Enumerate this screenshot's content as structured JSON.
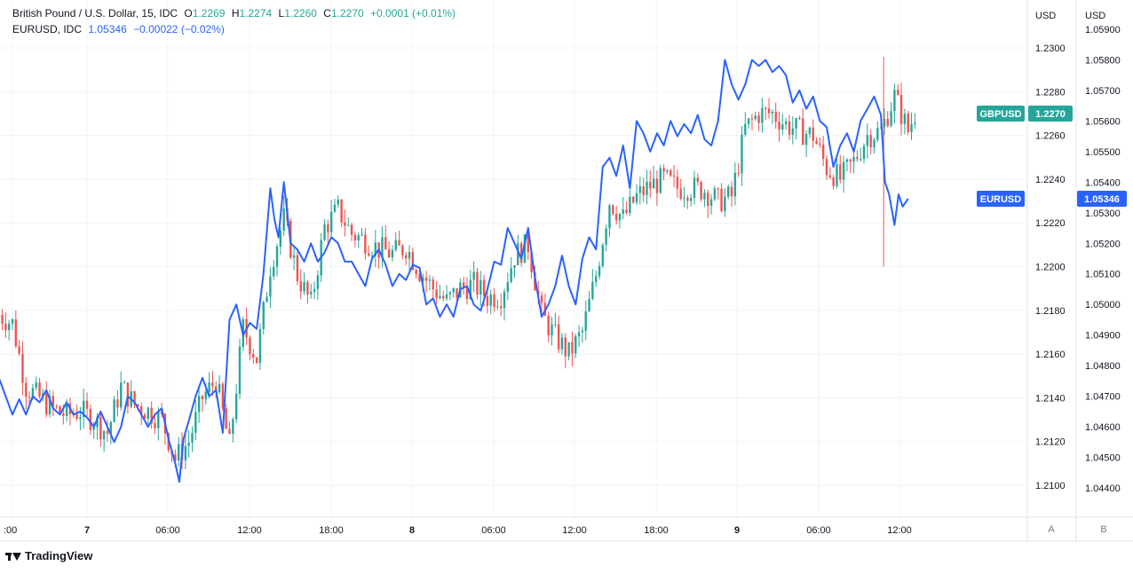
{
  "legend": {
    "main_symbol": "British Pound / U.S. Dollar, 15, IDC",
    "o_label": "O",
    "o_value": "1.2269",
    "h_label": "H",
    "h_value": "1.2274",
    "l_label": "L",
    "l_value": "1.2260",
    "c_label": "C",
    "c_value": "1.2270",
    "change": "+0.0001 (+0.01%)",
    "compare_symbol": "EURUSD, IDC",
    "compare_value": "1.05346",
    "compare_change": "−0.00022 (−0.02%)"
  },
  "axis_units": {
    "left": "USD",
    "right": "USD"
  },
  "scale_buttons": {
    "a": "A",
    "b": "B"
  },
  "footer": {
    "brand": "TradingView"
  },
  "colors": {
    "up": "#26a69a",
    "down": "#ef5350",
    "compare": "#2962ff",
    "grid": "#f0f3fa"
  },
  "chart_data": {
    "type": "line",
    "title": "",
    "x_ticks": [
      ":00",
      "7",
      "06:00",
      "12:00",
      "18:00",
      "8",
      "06:00",
      "12:00",
      "18:00",
      "9",
      "06:00",
      "12:00"
    ],
    "left_axis": {
      "ticks": [
        "1.2300",
        "1.2280",
        "1.2260",
        "1.2240",
        "1.2220",
        "1.2200",
        "1.2180",
        "1.2160",
        "1.2140",
        "1.2120",
        "1.2100"
      ],
      "range": [
        1.209,
        1.2315
      ]
    },
    "right_axis": {
      "ticks": [
        "1.05900",
        "1.05800",
        "1.05700",
        "1.05600",
        "1.05500",
        "1.05400",
        "1.05300",
        "1.05200",
        "1.05100",
        "1.05000",
        "1.04900",
        "1.04800",
        "1.04700",
        "1.04600",
        "1.04500",
        "1.04400"
      ],
      "range": [
        1.0435,
        1.0594
      ]
    },
    "series": [
      {
        "name": "GBPUSD",
        "kind": "candles",
        "last_label": "1.2270",
        "time_range": [
          -1,
          67
        ],
        "close_anchors": [
          [
            -1,
            1.2178
          ],
          [
            0,
            1.2174
          ],
          [
            1,
            1.2145
          ],
          [
            2,
            1.214
          ],
          [
            3,
            1.2135
          ],
          [
            4,
            1.2132
          ],
          [
            5,
            1.2134
          ],
          [
            6,
            1.213
          ],
          [
            7,
            1.2124
          ],
          [
            8,
            1.2145
          ],
          [
            9,
            1.2137
          ],
          [
            10,
            1.2134
          ],
          [
            11,
            1.213
          ],
          [
            12,
            1.2112
          ],
          [
            13,
            1.212
          ],
          [
            14,
            1.214
          ],
          [
            15,
            1.2148
          ],
          [
            16,
            1.2118
          ],
          [
            17,
            1.2172
          ],
          [
            18,
            1.2158
          ],
          [
            19,
            1.22
          ],
          [
            20,
            1.2222
          ],
          [
            21,
            1.2196
          ],
          [
            22,
            1.2183
          ],
          [
            23,
            1.2218
          ],
          [
            24,
            1.2226
          ],
          [
            25,
            1.2215
          ],
          [
            26,
            1.2212
          ],
          [
            27,
            1.2208
          ],
          [
            28,
            1.2206
          ],
          [
            29,
            1.2209
          ],
          [
            30,
            1.2198
          ],
          [
            31,
            1.219
          ],
          [
            32,
            1.2184
          ],
          [
            33,
            1.219
          ],
          [
            34,
            1.2192
          ],
          [
            35,
            1.2186
          ],
          [
            36,
            1.2187
          ],
          [
            37,
            1.2205
          ],
          [
            38,
            1.221
          ],
          [
            39,
            1.2178
          ],
          [
            40,
            1.2168
          ],
          [
            41,
            1.216
          ],
          [
            42,
            1.217
          ],
          [
            43,
            1.2196
          ],
          [
            44,
            1.223
          ],
          [
            45,
            1.2222
          ],
          [
            46,
            1.2232
          ],
          [
            47,
            1.2237
          ],
          [
            48,
            1.224
          ],
          [
            49,
            1.2236
          ],
          [
            50,
            1.2236
          ],
          [
            51,
            1.2235
          ],
          [
            52,
            1.223
          ],
          [
            53,
            1.2232
          ],
          [
            54,
            1.2263
          ],
          [
            55,
            1.227
          ],
          [
            56,
            1.227
          ],
          [
            57,
            1.2265
          ],
          [
            58,
            1.2262
          ],
          [
            59,
            1.226
          ],
          [
            60,
            1.2245
          ],
          [
            61,
            1.224
          ],
          [
            62,
            1.2248
          ],
          [
            63,
            1.226
          ],
          [
            64,
            1.2262
          ],
          [
            65,
            1.2278
          ],
          [
            66,
            1.2262
          ],
          [
            66.5,
            1.227
          ]
        ]
      },
      {
        "name": "EURUSD",
        "kind": "line",
        "last_label": "1.05346",
        "points": [
          [
            -1,
            1.0476
          ],
          [
            0,
            1.0464
          ],
          [
            0.5,
            1.0469
          ],
          [
            1,
            1.0464
          ],
          [
            1.5,
            1.047
          ],
          [
            2,
            1.0468
          ],
          [
            2.5,
            1.0472
          ],
          [
            3,
            1.0466
          ],
          [
            3.5,
            1.0464
          ],
          [
            4,
            1.0468
          ],
          [
            4.5,
            1.0464
          ],
          [
            5,
            1.0465
          ],
          [
            5.5,
            1.0463
          ],
          [
            6,
            1.046
          ],
          [
            6.5,
            1.0465
          ],
          [
            7,
            1.046
          ],
          [
            7.5,
            1.0455
          ],
          [
            8,
            1.046
          ],
          [
            8.5,
            1.047
          ],
          [
            9,
            1.0468
          ],
          [
            9.5,
            1.0464
          ],
          [
            10,
            1.046
          ],
          [
            10.5,
            1.0464
          ],
          [
            11,
            1.0466
          ],
          [
            11.5,
            1.0456
          ],
          [
            12,
            1.0448
          ],
          [
            12.3,
            1.0442
          ],
          [
            12.6,
            1.0456
          ],
          [
            13,
            1.0462
          ],
          [
            13.5,
            1.047
          ],
          [
            14,
            1.0476
          ],
          [
            14.5,
            1.047
          ],
          [
            15,
            1.0472
          ],
          [
            15.5,
            1.0458
          ],
          [
            16,
            1.0495
          ],
          [
            16.5,
            1.05
          ],
          [
            17,
            1.049
          ],
          [
            17.5,
            1.0494
          ],
          [
            18,
            1.0492
          ],
          [
            18.5,
            1.051
          ],
          [
            19,
            1.0538
          ],
          [
            19.3,
            1.0528
          ],
          [
            19.6,
            1.0522
          ],
          [
            20,
            1.054
          ],
          [
            20.5,
            1.052
          ],
          [
            21,
            1.0518
          ],
          [
            21.5,
            1.0514
          ],
          [
            22,
            1.052
          ],
          [
            22.5,
            1.0514
          ],
          [
            23,
            1.0517
          ],
          [
            23.5,
            1.0522
          ],
          [
            24,
            1.052
          ],
          [
            24.5,
            1.0514
          ],
          [
            25,
            1.0514
          ],
          [
            25.5,
            1.051
          ],
          [
            26,
            1.0506
          ],
          [
            26.5,
            1.0515
          ],
          [
            27,
            1.0518
          ],
          [
            27.5,
            1.0513
          ],
          [
            28,
            1.0506
          ],
          [
            28.5,
            1.051
          ],
          [
            29,
            1.0508
          ],
          [
            29.5,
            1.0513
          ],
          [
            30,
            1.0512
          ],
          [
            30.5,
            1.05
          ],
          [
            31,
            1.0502
          ],
          [
            31.5,
            1.0496
          ],
          [
            32,
            1.05
          ],
          [
            32.5,
            1.0496
          ],
          [
            33,
            1.0505
          ],
          [
            33.5,
            1.0506
          ],
          [
            34,
            1.05
          ],
          [
            34.5,
            1.0498
          ],
          [
            35,
            1.0505
          ],
          [
            35.5,
            1.0514
          ],
          [
            36,
            1.0513
          ],
          [
            36.5,
            1.0525
          ],
          [
            37,
            1.052
          ],
          [
            37.5,
            1.0515
          ],
          [
            38,
            1.0525
          ],
          [
            38.5,
            1.0509
          ],
          [
            39,
            1.0496
          ],
          [
            39.5,
            1.05
          ],
          [
            40,
            1.0506
          ],
          [
            40.5,
            1.0516
          ],
          [
            41,
            1.0506
          ],
          [
            41.5,
            1.05
          ],
          [
            42,
            1.0515
          ],
          [
            42.5,
            1.0522
          ],
          [
            43,
            1.0518
          ],
          [
            43.5,
            1.0545
          ],
          [
            44,
            1.0548
          ],
          [
            44.5,
            1.0542
          ],
          [
            45,
            1.0552
          ],
          [
            45.5,
            1.0538
          ],
          [
            46,
            1.056
          ],
          [
            46.5,
            1.0556
          ],
          [
            47,
            1.055
          ],
          [
            47.5,
            1.0556
          ],
          [
            48,
            1.0552
          ],
          [
            48.5,
            1.056
          ],
          [
            49,
            1.0555
          ],
          [
            49.5,
            1.0559
          ],
          [
            50,
            1.0556
          ],
          [
            50.5,
            1.0562
          ],
          [
            51,
            1.0554
          ],
          [
            51.5,
            1.0552
          ],
          [
            52,
            1.056
          ],
          [
            52.5,
            1.058
          ],
          [
            53,
            1.0572
          ],
          [
            53.5,
            1.0567
          ],
          [
            54,
            1.0572
          ],
          [
            54.5,
            1.058
          ],
          [
            55,
            1.0578
          ],
          [
            55.5,
            1.058
          ],
          [
            56,
            1.0576
          ],
          [
            56.5,
            1.0578
          ],
          [
            57,
            1.0575
          ],
          [
            57.5,
            1.0566
          ],
          [
            58,
            1.057
          ],
          [
            58.5,
            1.0564
          ],
          [
            59,
            1.0568
          ],
          [
            59.5,
            1.056
          ],
          [
            60,
            1.0558
          ],
          [
            60.5,
            1.0545
          ],
          [
            61,
            1.0552
          ],
          [
            61.5,
            1.0556
          ],
          [
            62,
            1.055
          ],
          [
            62.5,
            1.056
          ],
          [
            63,
            1.0564
          ],
          [
            63.5,
            1.0568
          ],
          [
            64,
            1.0562
          ],
          [
            64.3,
            1.054
          ],
          [
            64.6,
            1.0536
          ],
          [
            65,
            1.0526
          ],
          [
            65.3,
            1.0536
          ],
          [
            65.6,
            1.0532
          ],
          [
            66,
            1.05346
          ]
        ]
      }
    ],
    "grid": true,
    "legend_position": "top-left"
  }
}
